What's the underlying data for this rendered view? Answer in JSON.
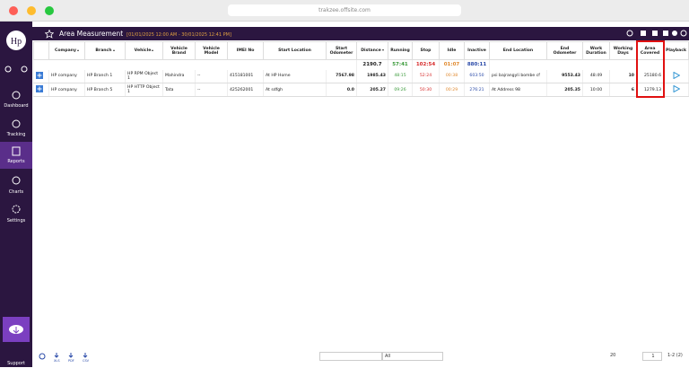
{
  "browser": {
    "url": "trakzee.offsite.com"
  },
  "sidebar": {
    "items": [
      "Dashboard",
      "Tracking",
      "Reports",
      "Charts",
      "Settings"
    ],
    "support": "Support"
  },
  "header": {
    "title": "Area Measurement",
    "date_range": "[01/01/2025 12:00 AM - 30/01/2025 12:41 PM]"
  },
  "table": {
    "columns": [
      "Company",
      "Branch",
      "Vehicle",
      "Vehicle Brand",
      "Vehicle Model",
      "IMEI No",
      "Start Location",
      "Start Odometer",
      "Distance",
      "Running",
      "Stop",
      "Idle",
      "Inactive",
      "End Location",
      "End Odometer",
      "Work Duration",
      "Working Days",
      "Area Covered",
      "Playback"
    ],
    "summary": [
      "2190.7",
      "57:41",
      "102:54",
      "01:07",
      "880:11"
    ],
    "rows": [
      [
        "HP company",
        "HP Branch 1",
        "HP RPM Object 1",
        "Mahindra",
        "--",
        "415181001",
        "At HP Home",
        "7567.98",
        "1985.43",
        "48:15",
        "52:24",
        "00:38",
        "603:50",
        "psi bajrangyli bombe cf",
        "9553.43",
        "48:49",
        "10",
        "25180.6"
      ],
      [
        "HP company",
        "HP Branch 5",
        "HP HTTP Object 1",
        "Tata",
        "--",
        "425262001",
        "At sdfgh",
        "0.0",
        "205.27",
        "09:26",
        "50:30",
        "00:29",
        "276:21",
        "At Address 98",
        "205.35",
        "10:00",
        "6",
        "1279.13"
      ]
    ]
  },
  "footer": {
    "exports": [
      "XLS",
      "PDF",
      "CSV"
    ],
    "filter": "All",
    "page_size": "20",
    "page": "1",
    "range": "1-2 (2)"
  }
}
